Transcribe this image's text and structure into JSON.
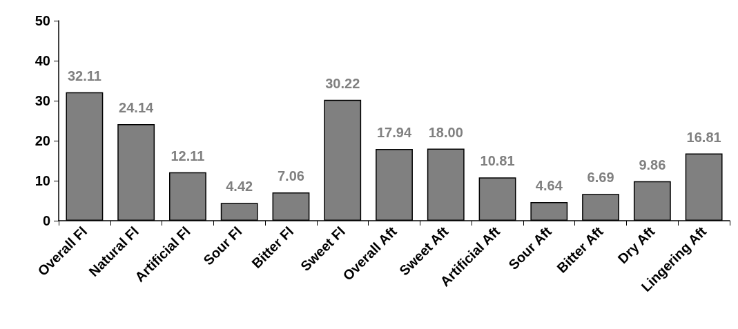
{
  "chart_data": {
    "type": "bar",
    "categories": [
      "Overall Fl",
      "Natural Fl",
      "Artificial Fl",
      "Sour Fl",
      "Bitter Fl",
      "Sweet Fl",
      "Overall Aft",
      "Sweet Aft",
      "Artificial Aft",
      "Sour Aft",
      "Bitter Aft",
      "Dry Aft",
      "Lingering Aft"
    ],
    "values": [
      32.11,
      24.14,
      12.11,
      4.42,
      7.06,
      30.22,
      17.94,
      18.0,
      10.81,
      4.64,
      6.69,
      9.86,
      16.81
    ],
    "value_labels": [
      "32.11",
      "24.14",
      "12.11",
      "4.42",
      "7.06",
      "30.22",
      "17.94",
      "18.00",
      "10.81",
      "4.64",
      "6.69",
      "9.86",
      "16.81"
    ],
    "color": "#808080",
    "ylim": [
      0,
      50
    ],
    "yticks": [
      0,
      10,
      20,
      30,
      40,
      50
    ],
    "grid": false
  }
}
